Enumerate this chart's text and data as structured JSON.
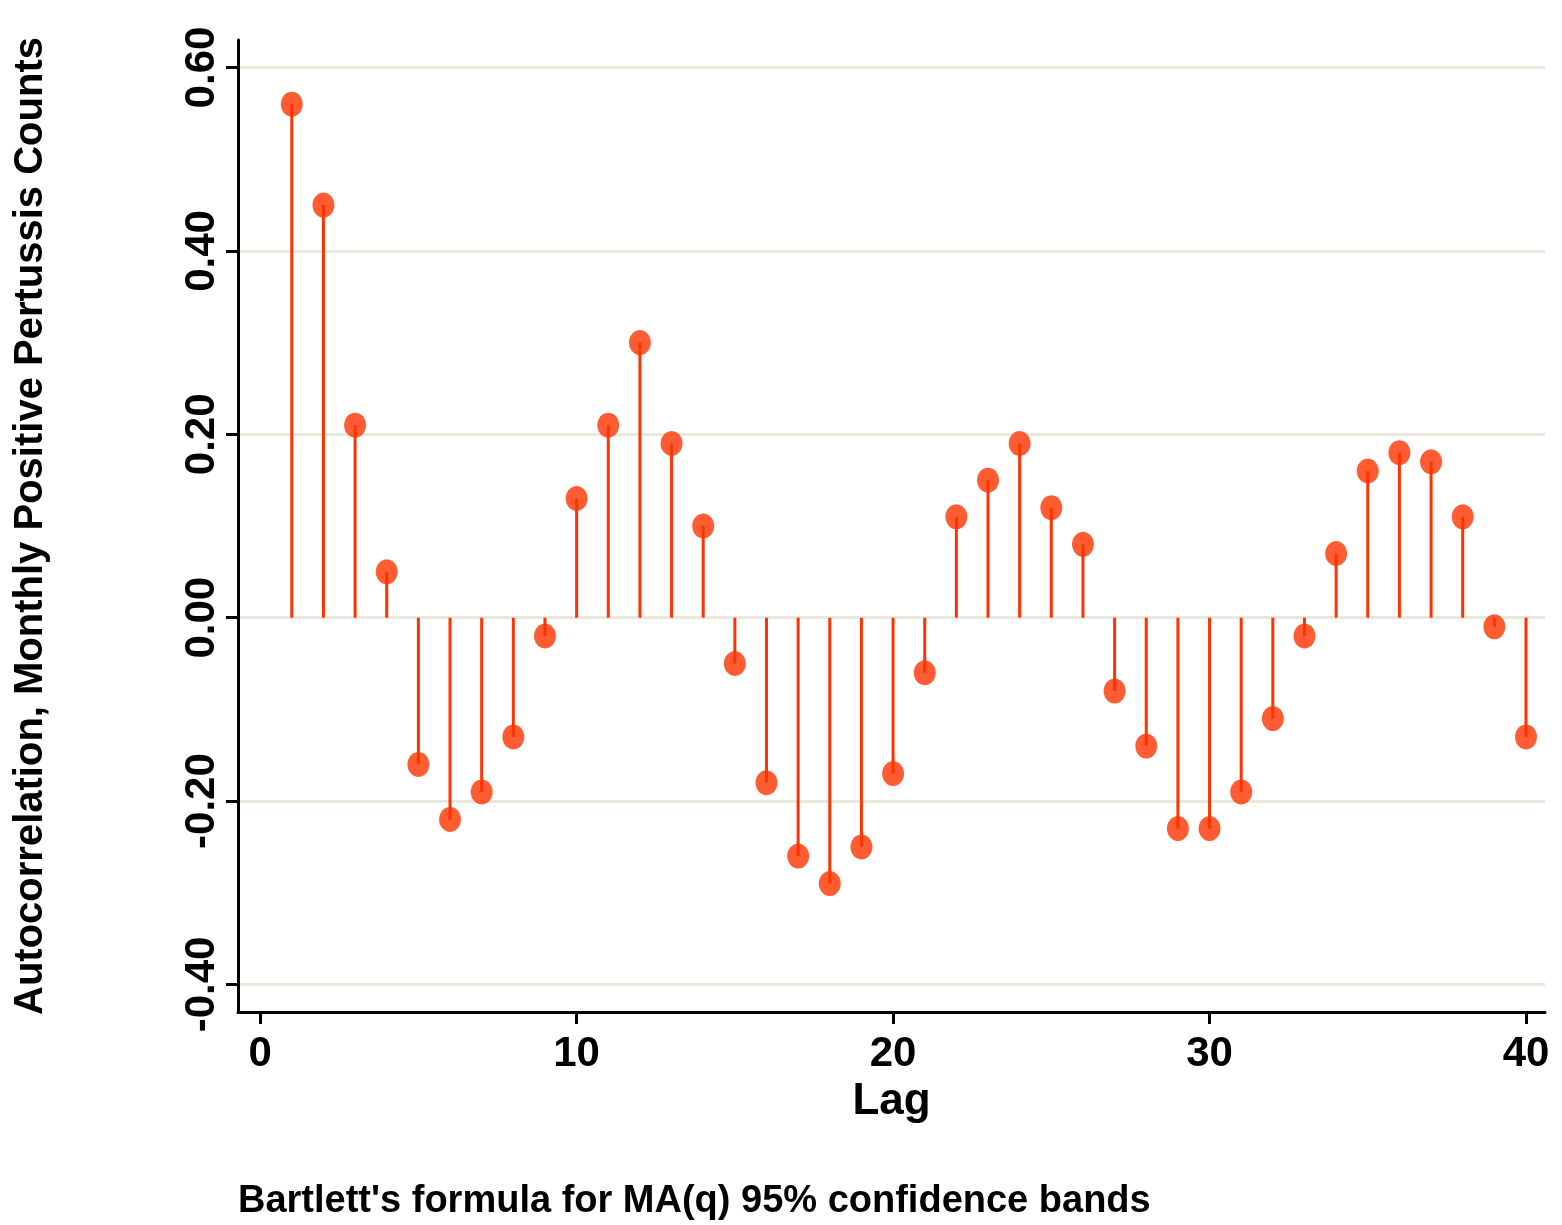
{
  "chart_data": {
    "type": "lollipop",
    "xlabel": "Lag",
    "ylabel": "Autocorrelation, Monthly Positive Pertussis Counts",
    "annotations": [
      "Bartlett's formula for MA(q) 95% confidence bands"
    ],
    "x": [
      1,
      2,
      3,
      4,
      5,
      6,
      7,
      8,
      9,
      10,
      11,
      12,
      13,
      14,
      15,
      16,
      17,
      18,
      19,
      20,
      21,
      22,
      23,
      24,
      25,
      26,
      27,
      28,
      29,
      30,
      31,
      32,
      33,
      34,
      35,
      36,
      37,
      38,
      39,
      40
    ],
    "values": [
      0.56,
      0.45,
      0.21,
      0.05,
      -0.16,
      -0.22,
      -0.19,
      -0.13,
      -0.02,
      0.13,
      0.21,
      0.3,
      0.19,
      0.1,
      -0.05,
      -0.18,
      -0.26,
      -0.29,
      -0.25,
      -0.17,
      -0.06,
      0.11,
      0.15,
      0.19,
      0.12,
      0.08,
      -0.08,
      -0.14,
      -0.23,
      -0.23,
      -0.19,
      -0.11,
      -0.02,
      0.07,
      0.16,
      0.18,
      0.17,
      0.11,
      -0.01,
      -0.13
    ],
    "color": "#ff3300",
    "marker": "circle",
    "grid": "y",
    "xlim": [
      -0.7,
      40.6
    ],
    "xticks": [
      0,
      10,
      20,
      30,
      40
    ],
    "ylim": [
      -0.43,
      0.63
    ],
    "yticks": [
      {
        "value": -0.4,
        "label": "-0.40"
      },
      {
        "value": -0.2,
        "label": "-0.20"
      },
      {
        "value": 0,
        "label": "0.00"
      },
      {
        "value": 0.2,
        "label": "0.20"
      },
      {
        "value": 0.4,
        "label": "0.40"
      },
      {
        "value": 0.6,
        "label": "0.60"
      }
    ]
  }
}
